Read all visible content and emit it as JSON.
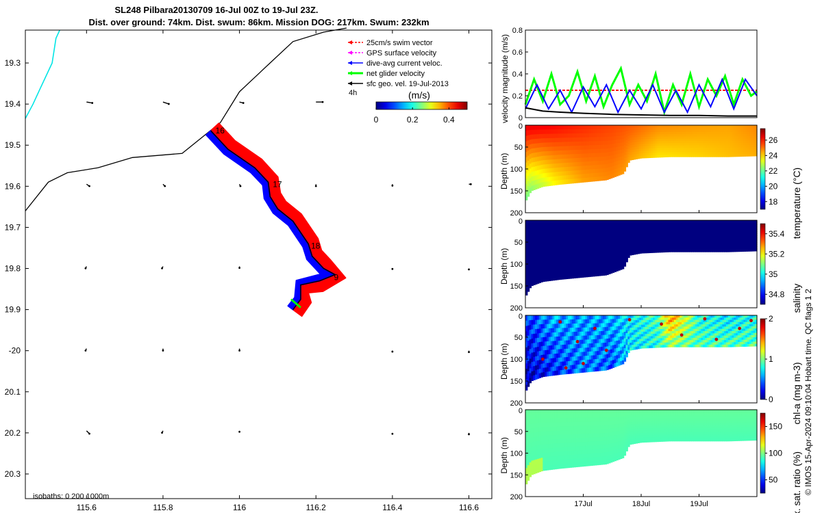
{
  "title": {
    "line1": "SL248 Pilbara20130709 16-Jul 00Z to 19-Jul 23Z.",
    "line2": "Dist. over ground: 74km. Dist. swum: 86km. Mission DOG: 217km. Swum: 232km"
  },
  "credit": "© IMOS 15-Apr-2024 09:10:04 Hobart time. QC flags 1  2",
  "colors": {
    "swim": "#ff0000",
    "gps": "#ff00ff",
    "dive_avg": "#0000ff",
    "net": "#00ff00",
    "sfc_geo": "#000000",
    "coast": "#00e5e5",
    "track_red": "#ff0000",
    "track_blue": "#0000ff"
  },
  "chart_data": [
    {
      "type": "line",
      "id": "map",
      "xlim": [
        115.44,
        116.66
      ],
      "ylim": [
        -20.36,
        -19.22
      ],
      "x_ticks": [
        115.6,
        115.8,
        116,
        116.2,
        116.4,
        116.6
      ],
      "x_tick_labels": [
        "115.6",
        "115.8",
        "116",
        "116.2",
        "116.4",
        "116.6"
      ],
      "y_ticks": [
        -19.3,
        -19.4,
        -19.5,
        -19.6,
        -19.7,
        -19.8,
        -19.9,
        -20.0,
        -20.1,
        -20.2,
        -20.3
      ],
      "y_tick_labels": [
        "19.3",
        "19.4",
        "19.5",
        "19.6",
        "19.7",
        "19.8",
        "19.9",
        "-20",
        "20.1",
        "20.2",
        "20.3"
      ],
      "legend": {
        "placement": "top-right",
        "entries": [
          {
            "label": "25cm/s swim vector",
            "color": "#ff0000"
          },
          {
            "label": "GPS surface velocity",
            "color": "#ff00ff"
          },
          {
            "label": "dive-avg current veloc.",
            "color": "#0000ff"
          },
          {
            "label": "net glider velocity",
            "color": "#00ff00"
          },
          {
            "label": "sfc geo. vel. 19-Jul-2013",
            "color": "#000000"
          }
        ],
        "extra": "4h"
      },
      "colorbar": {
        "label": "(m/s)",
        "ticks": [
          0,
          0.2,
          0.4
        ],
        "tick_labels": [
          "0",
          "0.2",
          "0.4"
        ],
        "range": [
          0,
          0.5
        ]
      },
      "isobaths_label": "isobaths: 0   200  1000m",
      "isobath": [
        [
          115.44,
          -19.66
        ],
        [
          115.5,
          -19.59
        ],
        [
          115.55,
          -19.567
        ],
        [
          115.63,
          -19.555
        ],
        [
          115.72,
          -19.53
        ],
        [
          115.85,
          -19.52
        ],
        [
          115.89,
          -19.49
        ],
        [
          115.95,
          -19.445
        ],
        [
          116.0,
          -19.37
        ],
        [
          116.08,
          -19.3
        ],
        [
          116.14,
          -19.248
        ],
        [
          116.22,
          -19.225
        ],
        [
          116.28,
          -19.215
        ]
      ],
      "coast": [
        [
          115.44,
          -19.435
        ],
        [
          115.46,
          -19.4
        ],
        [
          115.48,
          -19.36
        ],
        [
          115.51,
          -19.3
        ],
        [
          115.52,
          -19.24
        ],
        [
          115.53,
          -19.22
        ]
      ],
      "track": [
        [
          115.925,
          -19.465
        ],
        [
          115.97,
          -19.51
        ],
        [
          116.04,
          -19.555
        ],
        [
          116.075,
          -19.59
        ],
        [
          116.08,
          -19.625
        ],
        [
          116.1,
          -19.655
        ],
        [
          116.14,
          -19.685
        ],
        [
          116.18,
          -19.74
        ],
        [
          116.19,
          -19.77
        ],
        [
          116.22,
          -19.8
        ],
        [
          116.25,
          -19.815
        ],
        [
          116.21,
          -19.83
        ],
        [
          116.16,
          -19.84
        ],
        [
          116.16,
          -19.875
        ],
        [
          116.14,
          -19.9
        ]
      ],
      "day_labels": [
        {
          "label": "16",
          "lon": 115.93,
          "lat": -19.475
        },
        {
          "label": "17",
          "lon": 116.08,
          "lat": -19.605
        },
        {
          "label": "18",
          "lon": 116.18,
          "lat": -19.755
        },
        {
          "label": "9",
          "lon": 116.24,
          "lat": -19.832
        }
      ],
      "current_vectors": [
        {
          "lon": 115.6,
          "lat": -19.395,
          "u": 0.06,
          "v": -0.01
        },
        {
          "lon": 115.8,
          "lat": -19.395,
          "u": 0.06,
          "v": -0.02
        },
        {
          "lon": 116.0,
          "lat": -19.395,
          "u": 0.04,
          "v": -0.01
        },
        {
          "lon": 116.2,
          "lat": -19.395,
          "u": 0.07,
          "v": 0.0
        },
        {
          "lon": 115.6,
          "lat": -19.595,
          "u": 0.03,
          "v": -0.02
        },
        {
          "lon": 115.8,
          "lat": -19.595,
          "u": 0.02,
          "v": -0.02
        },
        {
          "lon": 116.0,
          "lat": -19.595,
          "u": 0.01,
          "v": -0.02
        },
        {
          "lon": 116.2,
          "lat": -19.595,
          "u": 0.0,
          "v": -0.02
        },
        {
          "lon": 116.4,
          "lat": -19.595,
          "u": 0.0,
          "v": -0.015
        },
        {
          "lon": 116.6,
          "lat": -19.595,
          "u": 0.02,
          "v": 0.0
        },
        {
          "lon": 115.6,
          "lat": -19.795,
          "u": -0.01,
          "v": -0.02
        },
        {
          "lon": 115.8,
          "lat": -19.795,
          "u": -0.01,
          "v": -0.02
        },
        {
          "lon": 116.0,
          "lat": -19.795,
          "u": 0.0,
          "v": -0.015
        },
        {
          "lon": 116.4,
          "lat": -19.8,
          "u": 0.0,
          "v": -0.005
        },
        {
          "lon": 116.6,
          "lat": -19.8,
          "u": 0.0,
          "v": -0.01
        },
        {
          "lon": 115.6,
          "lat": -19.995,
          "u": -0.01,
          "v": -0.02
        },
        {
          "lon": 115.8,
          "lat": -19.995,
          "u": 0.0,
          "v": -0.02
        },
        {
          "lon": 116.0,
          "lat": -19.995,
          "u": 0.0,
          "v": -0.02
        },
        {
          "lon": 116.4,
          "lat": -20.0,
          "u": 0.0,
          "v": -0.01
        },
        {
          "lon": 116.6,
          "lat": -20.0,
          "u": 0.0,
          "v": -0.015
        },
        {
          "lon": 115.6,
          "lat": -20.195,
          "u": 0.03,
          "v": -0.03
        },
        {
          "lon": 115.8,
          "lat": -20.195,
          "u": -0.01,
          "v": -0.02
        },
        {
          "lon": 116.0,
          "lat": -20.195,
          "u": 0.0,
          "v": -0.01
        },
        {
          "lon": 116.4,
          "lat": -20.2,
          "u": 0.0,
          "v": -0.01
        },
        {
          "lon": 116.6,
          "lat": -20.2,
          "u": 0.0,
          "v": -0.015
        }
      ]
    },
    {
      "type": "line",
      "id": "velocity",
      "ylabel": "velocity magnitude (m/s)",
      "ylim": [
        0,
        0.8
      ],
      "y_ticks": [
        0,
        0.2,
        0.4,
        0.6,
        0.8
      ],
      "y_tick_labels": [
        "0",
        "0.2",
        "0.4",
        "0.6",
        "0.8"
      ],
      "xlim_days": [
        16.0,
        20.0
      ],
      "series": [
        {
          "color": "#ff0000",
          "x": [
            16.0,
            20.0
          ],
          "y": [
            0.25,
            0.25
          ]
        },
        {
          "color": "#00ff00",
          "x": [
            16.0,
            16.15,
            16.3,
            16.45,
            16.6,
            16.75,
            16.9,
            17.05,
            17.2,
            17.35,
            17.5,
            17.65,
            17.8,
            17.95,
            18.1,
            18.25,
            18.4,
            18.55,
            18.7,
            18.85,
            19.0,
            19.15,
            19.3,
            19.45,
            19.6,
            19.75,
            19.9,
            20.0
          ],
          "y": [
            0.12,
            0.35,
            0.15,
            0.4,
            0.12,
            0.2,
            0.42,
            0.15,
            0.38,
            0.1,
            0.3,
            0.45,
            0.12,
            0.3,
            0.15,
            0.4,
            0.05,
            0.3,
            0.12,
            0.4,
            0.1,
            0.35,
            0.2,
            0.38,
            0.12,
            0.35,
            0.2,
            0.24
          ]
        },
        {
          "color": "#0000ff",
          "x": [
            16.0,
            16.2,
            16.4,
            16.6,
            16.8,
            17.0,
            17.2,
            17.4,
            17.6,
            17.8,
            18.0,
            18.2,
            18.4,
            18.6,
            18.8,
            19.0,
            19.2,
            19.4,
            19.6,
            19.8,
            20.0
          ],
          "y": [
            0.08,
            0.3,
            0.08,
            0.25,
            0.05,
            0.28,
            0.1,
            0.3,
            0.05,
            0.25,
            0.08,
            0.3,
            0.05,
            0.25,
            0.05,
            0.3,
            0.1,
            0.35,
            0.08,
            0.35,
            0.2
          ]
        },
        {
          "color": "#000000",
          "x": [
            16.0,
            16.3,
            16.6,
            17.0,
            17.5,
            18.0,
            18.5,
            19.0,
            19.5,
            20.0
          ],
          "y": [
            0.09,
            0.06,
            0.05,
            0.04,
            0.03,
            0.025,
            0.02,
            0.02,
            0.015,
            0.015
          ]
        }
      ]
    },
    {
      "type": "heatmap",
      "id": "temperature",
      "ylabel": "Depth (m)",
      "ylim": [
        200,
        0
      ],
      "y_ticks": [
        50,
        100,
        150,
        200
      ],
      "y_tick_labels": [
        "50",
        "100",
        "150",
        "200"
      ],
      "colorbar": {
        "label": "temperature (°C)",
        "range": [
          17,
          27.5
        ],
        "ticks": [
          18,
          20,
          22,
          24,
          26
        ],
        "tick_labels": [
          "18",
          "20",
          "22",
          "24",
          "26"
        ],
        "colormap": "jet"
      },
      "bottom_depth": {
        "x": [
          16.0,
          16.1,
          16.3,
          16.6,
          17.0,
          17.4,
          17.7,
          17.8,
          18.0,
          18.5,
          19.0,
          19.5,
          20.0
        ],
        "y": [
          175,
          150,
          140,
          135,
          130,
          125,
          110,
          80,
          75,
          72,
          72,
          72,
          70
        ]
      },
      "field": {
        "x": [
          16.0,
          16.5,
          17.0,
          17.5,
          17.8,
          18.3,
          19.0,
          19.5,
          20.0
        ],
        "surface": [
          26.5,
          26.2,
          25.8,
          25.5,
          25.3,
          24.8,
          24.6,
          24.5,
          24.8
        ],
        "bottom": [
          22,
          23.5,
          24.5,
          24.8,
          24.5,
          23.8,
          24.0,
          24.2,
          24.4
        ]
      }
    },
    {
      "type": "heatmap",
      "id": "salinity",
      "ylabel": "Depth (m)",
      "ylim": [
        200,
        0
      ],
      "y_ticks": [
        50,
        100,
        150,
        200
      ],
      "y_tick_labels": [
        "50",
        "100",
        "150",
        "200"
      ],
      "colorbar": {
        "label": "salinity",
        "range": [
          34.7,
          35.5
        ],
        "ticks": [
          34.8,
          35,
          35.2,
          35.4
        ],
        "tick_labels": [
          "34.8",
          "35",
          "35.2",
          "35.4"
        ],
        "colormap": "jet"
      },
      "bottom_depth": {
        "x": [
          16.0,
          16.1,
          16.3,
          16.6,
          17.0,
          17.4,
          17.7,
          17.8,
          18.0,
          18.5,
          19.0,
          19.5,
          20.0
        ],
        "y": [
          175,
          150,
          140,
          135,
          130,
          125,
          110,
          80,
          75,
          72,
          72,
          72,
          70
        ]
      },
      "field": {
        "x": [
          16.0,
          20.0
        ],
        "surface": [
          34.7,
          34.7
        ],
        "bottom": [
          34.7,
          34.7
        ]
      }
    },
    {
      "type": "heatmap",
      "id": "chla",
      "ylabel": "Depth (m)",
      "ylim": [
        200,
        0
      ],
      "y_ticks": [
        50,
        100,
        150,
        200
      ],
      "y_tick_labels": [
        "50",
        "100",
        "150",
        "200"
      ],
      "colorbar": {
        "label": "chl-a (mg m-3)",
        "range": [
          0,
          2
        ],
        "ticks": [
          0,
          1,
          2
        ],
        "tick_labels": [
          "0",
          "1",
          "2"
        ],
        "colormap": "jet"
      },
      "bottom_depth": {
        "x": [
          16.0,
          16.1,
          16.3,
          16.6,
          17.0,
          17.4,
          17.7,
          17.8,
          18.0,
          18.5,
          19.0,
          19.5,
          20.0
        ],
        "y": [
          175,
          150,
          140,
          135,
          130,
          125,
          110,
          80,
          75,
          72,
          72,
          72,
          70
        ]
      },
      "field": {
        "x": [
          16.0,
          16.5,
          17.0,
          17.5,
          17.8,
          18.3,
          18.5,
          19.0,
          19.5,
          20.0
        ],
        "surface": [
          0.35,
          0.6,
          0.55,
          0.6,
          0.7,
          0.9,
          1.5,
          0.8,
          0.7,
          0.8
        ],
        "bottom": [
          0.1,
          0.3,
          0.5,
          0.4,
          0.7,
          0.8,
          1.0,
          0.9,
          0.9,
          0.9
        ]
      }
    },
    {
      "type": "heatmap",
      "id": "oxygen",
      "ylabel": "Depth (m)",
      "ylim": [
        200,
        0
      ],
      "y_ticks": [
        50,
        100,
        150,
        200
      ],
      "y_tick_labels": [
        "50",
        "100",
        "150",
        "200"
      ],
      "x_tick_days": [
        17,
        18,
        19
      ],
      "x_tick_labels": [
        "17Jul",
        "18Jul",
        "19Jul"
      ],
      "colorbar": {
        "label": "Ox. sat. ratio (%)",
        "range": [
          25,
          175
        ],
        "ticks": [
          50,
          100,
          150
        ],
        "tick_labels": [
          "50",
          "100",
          "150"
        ],
        "colormap": "jet"
      },
      "bottom_depth": {
        "x": [
          16.0,
          16.1,
          16.3,
          16.6,
          17.0,
          17.4,
          17.7,
          17.8,
          18.0,
          18.5,
          19.0,
          19.5,
          20.0
        ],
        "y": [
          175,
          150,
          140,
          135,
          130,
          125,
          110,
          80,
          75,
          72,
          72,
          72,
          70
        ]
      },
      "field": {
        "x": [
          16.0,
          20.0
        ],
        "surface": [
          96,
          96
        ],
        "bottom": [
          92,
          92
        ]
      }
    }
  ]
}
